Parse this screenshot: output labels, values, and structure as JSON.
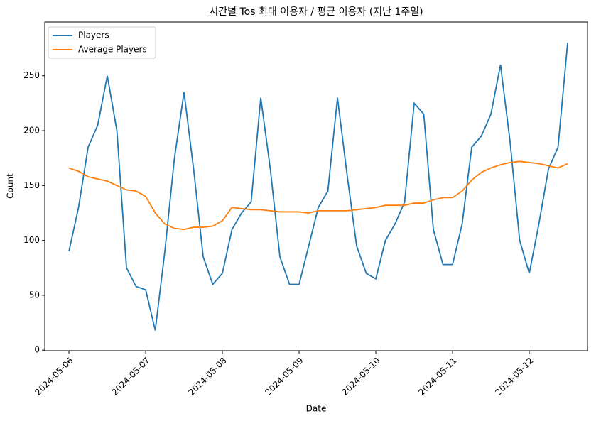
{
  "chart_data": {
    "type": "line",
    "title": "시간별 Tos 최대 이용자 / 평균 이용자 (지난 1주일)",
    "xlabel": "Date",
    "ylabel": "Count",
    "x": [
      "2024-05-06T00:00",
      "2024-05-06T03:00",
      "2024-05-06T06:00",
      "2024-05-06T09:00",
      "2024-05-06T12:00",
      "2024-05-06T15:00",
      "2024-05-06T18:00",
      "2024-05-06T21:00",
      "2024-05-07T00:00",
      "2024-05-07T03:00",
      "2024-05-07T06:00",
      "2024-05-07T09:00",
      "2024-05-07T12:00",
      "2024-05-07T15:00",
      "2024-05-07T18:00",
      "2024-05-07T21:00",
      "2024-05-08T00:00",
      "2024-05-08T03:00",
      "2024-05-08T06:00",
      "2024-05-08T09:00",
      "2024-05-08T12:00",
      "2024-05-08T15:00",
      "2024-05-08T18:00",
      "2024-05-08T21:00",
      "2024-05-09T00:00",
      "2024-05-09T03:00",
      "2024-05-09T06:00",
      "2024-05-09T09:00",
      "2024-05-09T12:00",
      "2024-05-09T15:00",
      "2024-05-09T18:00",
      "2024-05-09T21:00",
      "2024-05-10T00:00",
      "2024-05-10T03:00",
      "2024-05-10T06:00",
      "2024-05-10T09:00",
      "2024-05-10T12:00",
      "2024-05-10T15:00",
      "2024-05-10T18:00",
      "2024-05-10T21:00",
      "2024-05-11T00:00",
      "2024-05-11T03:00",
      "2024-05-11T06:00",
      "2024-05-11T09:00",
      "2024-05-11T12:00",
      "2024-05-11T15:00",
      "2024-05-11T18:00",
      "2024-05-11T21:00",
      "2024-05-12T00:00",
      "2024-05-12T03:00",
      "2024-05-12T06:00",
      "2024-05-12T09:00",
      "2024-05-12T12:00"
    ],
    "series": [
      {
        "name": "Players",
        "color": "#1f77b4",
        "values": [
          90,
          130,
          185,
          205,
          250,
          200,
          75,
          58,
          55,
          18,
          90,
          175,
          235,
          165,
          85,
          60,
          70,
          110,
          125,
          135,
          230,
          165,
          85,
          60,
          60,
          95,
          130,
          145,
          230,
          160,
          95,
          70,
          65,
          100,
          115,
          135,
          225,
          215,
          110,
          78,
          78,
          115,
          185,
          195,
          215,
          260,
          190,
          100,
          70,
          115,
          165,
          185,
          280
        ]
      },
      {
        "name": "Average Players",
        "color": "#ff7f0e",
        "values": [
          166,
          163,
          158,
          156,
          154,
          150,
          146,
          145,
          140,
          125,
          115,
          111,
          110,
          112,
          112,
          113,
          118,
          130,
          129,
          128,
          128,
          127,
          126,
          126,
          126,
          125,
          127,
          127,
          127,
          127,
          128,
          129,
          130,
          132,
          132,
          132,
          134,
          134,
          137,
          139,
          139,
          145,
          155,
          162,
          166,
          169,
          171,
          172,
          171,
          170,
          168,
          166,
          170
        ]
      }
    ],
    "xlim": [
      "2024-05-05T16:26",
      "2024-05-12T18:13"
    ],
    "xticks": [
      {
        "value": "2024-05-06T00:00",
        "label": "2024-05-06"
      },
      {
        "value": "2024-05-07T00:00",
        "label": "2024-05-07"
      },
      {
        "value": "2024-05-08T00:00",
        "label": "2024-05-08"
      },
      {
        "value": "2024-05-09T00:00",
        "label": "2024-05-09"
      },
      {
        "value": "2024-05-10T00:00",
        "label": "2024-05-10"
      },
      {
        "value": "2024-05-11T00:00",
        "label": "2024-05-11"
      },
      {
        "value": "2024-05-12T00:00",
        "label": "2024-05-12"
      }
    ],
    "ylim": [
      -0.5,
      299
    ],
    "yticks": [
      0,
      50,
      100,
      150,
      200,
      250
    ],
    "legend": "upper left"
  }
}
